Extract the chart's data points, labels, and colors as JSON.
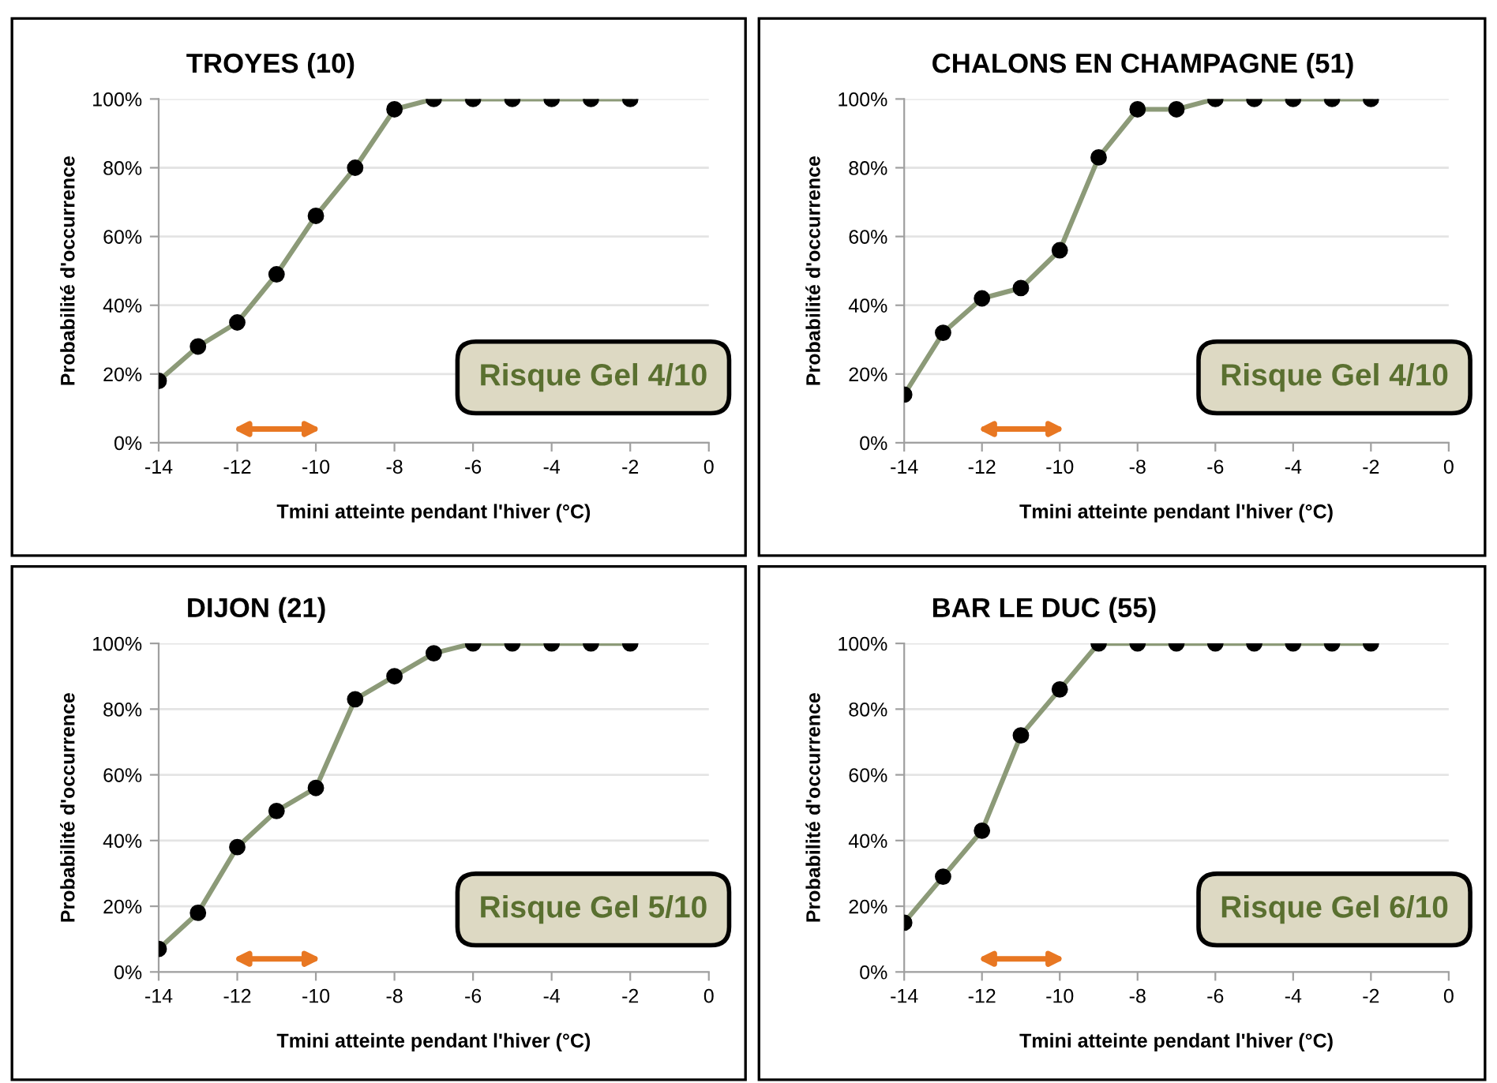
{
  "chart_data": [
    {
      "type": "line",
      "title": "TROYES (10)",
      "xlabel": "Tmini atteinte pendant l'hiver (°C)",
      "ylabel": "Probabilité d'occurrence",
      "x": [
        -14,
        -13,
        -12,
        -11,
        -10,
        -9,
        -8,
        -7,
        -6,
        -5,
        -4,
        -3,
        -2
      ],
      "series": [
        {
          "color": "#8c9a78",
          "values": [
            18,
            28,
            35,
            49,
            66,
            80,
            97,
            100,
            100,
            100,
            100,
            100,
            100
          ]
        }
      ],
      "xlim": [
        -14,
        0
      ],
      "xticks": [
        -14,
        -12,
        -10,
        -8,
        -6,
        -4,
        -2,
        0
      ],
      "ylim": [
        0,
        100
      ],
      "yticks": [
        {
          "value": 0,
          "label": "0%"
        },
        {
          "value": 20,
          "label": "20%"
        },
        {
          "value": 40,
          "label": "40%"
        },
        {
          "value": 60,
          "label": "60%"
        },
        {
          "value": 80,
          "label": "80%"
        },
        {
          "value": 100,
          "label": "100%"
        }
      ],
      "grid": "y",
      "legend": false,
      "marker": "circle",
      "line_style": "solid",
      "annotations": [
        "Risque Gel 4/10"
      ]
    },
    {
      "type": "line",
      "title": "CHALONS EN CHAMPAGNE (51)",
      "xlabel": "Tmini atteinte pendant l'hiver (°C)",
      "ylabel": "Probabilité d'occurrence",
      "x": [
        -14,
        -13,
        -12,
        -11,
        -10,
        -9,
        -8,
        -7,
        -6,
        -5,
        -4,
        -3,
        -2
      ],
      "series": [
        {
          "color": "#8c9a78",
          "values": [
            14,
            32,
            42,
            45,
            56,
            83,
            97,
            97,
            100,
            100,
            100,
            100,
            100
          ]
        }
      ],
      "xlim": [
        -14,
        0
      ],
      "xticks": [
        -14,
        -12,
        -10,
        -8,
        -6,
        -4,
        -2,
        0
      ],
      "ylim": [
        0,
        100
      ],
      "yticks": [
        {
          "value": 0,
          "label": "0%"
        },
        {
          "value": 20,
          "label": "20%"
        },
        {
          "value": 40,
          "label": "40%"
        },
        {
          "value": 60,
          "label": "60%"
        },
        {
          "value": 80,
          "label": "80%"
        },
        {
          "value": 100,
          "label": "100%"
        }
      ],
      "grid": "y",
      "legend": false,
      "marker": "circle",
      "line_style": "solid",
      "annotations": [
        "Risque Gel 4/10"
      ]
    },
    {
      "type": "line",
      "title": "DIJON (21)",
      "xlabel": "Tmini atteinte pendant l'hiver (°C)",
      "ylabel": "Probabilité d'occurrence",
      "x": [
        -14,
        -13,
        -12,
        -11,
        -10,
        -9,
        -8,
        -7,
        -6,
        -5,
        -4,
        -3,
        -2
      ],
      "series": [
        {
          "color": "#8c9a78",
          "values": [
            7,
            18,
            38,
            49,
            56,
            83,
            90,
            97,
            100,
            100,
            100,
            100,
            100
          ]
        }
      ],
      "xlim": [
        -14,
        0
      ],
      "xticks": [
        -14,
        -12,
        -10,
        -8,
        -6,
        -4,
        -2,
        0
      ],
      "ylim": [
        0,
        100
      ],
      "yticks": [
        {
          "value": 0,
          "label": "0%"
        },
        {
          "value": 20,
          "label": "20%"
        },
        {
          "value": 40,
          "label": "40%"
        },
        {
          "value": 60,
          "label": "60%"
        },
        {
          "value": 80,
          "label": "80%"
        },
        {
          "value": 100,
          "label": "100%"
        }
      ],
      "grid": "y",
      "legend": false,
      "marker": "circle",
      "line_style": "solid",
      "annotations": [
        "Risque Gel 5/10"
      ]
    },
    {
      "type": "line",
      "title": "BAR LE DUC (55)",
      "xlabel": "Tmini atteinte pendant l'hiver (°C)",
      "ylabel": "Probabilité d'occurrence",
      "x": [
        -14,
        -13,
        -12,
        -11,
        -10,
        -9,
        -8,
        -7,
        -6,
        -5,
        -4,
        -3,
        -2
      ],
      "series": [
        {
          "color": "#8c9a78",
          "values": [
            15,
            29,
            43,
            72,
            86,
            100,
            100,
            100,
            100,
            100,
            100,
            100,
            100
          ]
        }
      ],
      "xlim": [
        -14,
        0
      ],
      "xticks": [
        -14,
        -12,
        -10,
        -8,
        -6,
        -4,
        -2,
        0
      ],
      "ylim": [
        0,
        100
      ],
      "yticks": [
        {
          "value": 0,
          "label": "0%"
        },
        {
          "value": 20,
          "label": "20%"
        },
        {
          "value": 40,
          "label": "40%"
        },
        {
          "value": 60,
          "label": "60%"
        },
        {
          "value": 80,
          "label": "80%"
        },
        {
          "value": 100,
          "label": "100%"
        }
      ],
      "grid": "y",
      "legend": false,
      "marker": "circle",
      "line_style": "solid",
      "annotations": [
        "Risque Gel 6/10"
      ]
    }
  ]
}
